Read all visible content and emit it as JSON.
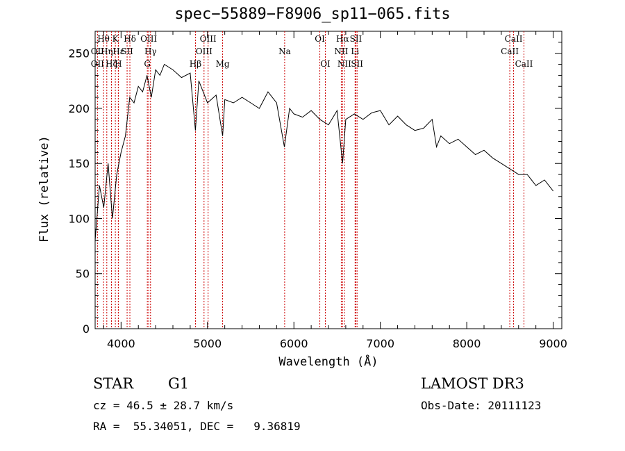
{
  "chart_data": {
    "type": "line",
    "title": "spec−55889−F8906_sp11−065.fits",
    "xlabel": "Wavelength (Å)",
    "ylabel": "Flux (relative)",
    "xlim": [
      3700,
      9100
    ],
    "ylim": [
      0,
      270
    ],
    "xticks": [
      4000,
      5000,
      6000,
      7000,
      8000,
      9000
    ],
    "yticks": [
      0,
      50,
      100,
      150,
      200,
      250
    ],
    "series": [
      {
        "name": "flux",
        "x": [
          3700,
          3750,
          3800,
          3850,
          3900,
          3950,
          4000,
          4050,
          4100,
          4150,
          4200,
          4250,
          4300,
          4350,
          4400,
          4450,
          4500,
          4600,
          4700,
          4800,
          4860,
          4900,
          5000,
          5100,
          5175,
          5200,
          5300,
          5400,
          5500,
          5600,
          5700,
          5800,
          5890,
          5950,
          6000,
          6100,
          6200,
          6300,
          6400,
          6500,
          6563,
          6600,
          6700,
          6800,
          6900,
          7000,
          7100,
          7200,
          7300,
          7400,
          7500,
          7600,
          7650,
          7700,
          7800,
          7900,
          8000,
          8100,
          8200,
          8300,
          8400,
          8500,
          8600,
          8700,
          8800,
          8900,
          9000
        ],
        "values": [
          80,
          130,
          110,
          150,
          100,
          140,
          160,
          175,
          210,
          205,
          220,
          215,
          230,
          210,
          235,
          230,
          240,
          235,
          228,
          232,
          180,
          225,
          205,
          212,
          175,
          208,
          205,
          210,
          205,
          200,
          215,
          205,
          165,
          200,
          195,
          192,
          198,
          190,
          185,
          198,
          150,
          190,
          195,
          190,
          196,
          198,
          185,
          193,
          185,
          180,
          182,
          190,
          165,
          175,
          168,
          172,
          165,
          158,
          162,
          155,
          150,
          145,
          140,
          140,
          130,
          135,
          125
        ]
      }
    ],
    "annotations": [
      {
        "label": "Hθ",
        "x": 3797,
        "row": 1
      },
      {
        "label": "OII",
        "x": 3727,
        "row": 2
      },
      {
        "label": "Hη",
        "x": 3835,
        "row": 2
      },
      {
        "label": "OII",
        "x": 3727,
        "row": 3
      },
      {
        "label": "Hζ",
        "x": 3889,
        "row": 3
      },
      {
        "label": "K",
        "x": 3934,
        "row": 1
      },
      {
        "label": "Hε",
        "x": 3970,
        "row": 2
      },
      {
        "label": "H",
        "x": 3968,
        "row": 3
      },
      {
        "label": "SII",
        "x": 4070,
        "row": 2
      },
      {
        "label": "Hδ",
        "x": 4102,
        "row": 1
      },
      {
        "label": "OIII",
        "x": 4320,
        "row": 1
      },
      {
        "label": "Hγ",
        "x": 4341,
        "row": 2
      },
      {
        "label": "G",
        "x": 4304,
        "row": 3
      },
      {
        "label": "OIII",
        "x": 5007,
        "row": 1
      },
      {
        "label": "OIII",
        "x": 4960,
        "row": 2
      },
      {
        "label": "Hβ",
        "x": 4861,
        "row": 3
      },
      {
        "label": "Mg",
        "x": 5175,
        "row": 3
      },
      {
        "label": "Na",
        "x": 5893,
        "row": 2
      },
      {
        "label": "OI",
        "x": 6300,
        "row": 1
      },
      {
        "label": "OI",
        "x": 6364,
        "row": 3
      },
      {
        "label": "Hα",
        "x": 6563,
        "row": 1
      },
      {
        "label": "NII",
        "x": 6548,
        "row": 2
      },
      {
        "label": "NII",
        "x": 6584,
        "row": 3
      },
      {
        "label": "SII",
        "x": 6717,
        "row": 1
      },
      {
        "label": "Li",
        "x": 6708,
        "row": 2
      },
      {
        "label": "SII",
        "x": 6731,
        "row": 3
      },
      {
        "label": "CaII",
        "x": 8542,
        "row": 1
      },
      {
        "label": "CaII",
        "x": 8498,
        "row": 2
      },
      {
        "label": "CaII",
        "x": 8662,
        "row": 3
      }
    ]
  },
  "info": {
    "object_class": "STAR",
    "subclass": "G1",
    "survey": "LAMOST DR3",
    "cz": "cz = 46.5 ± 28.7 km/s",
    "obs_date": "Obs-Date: 20111123",
    "coords": "RA =  55.34051, DEC =   9.36819"
  }
}
